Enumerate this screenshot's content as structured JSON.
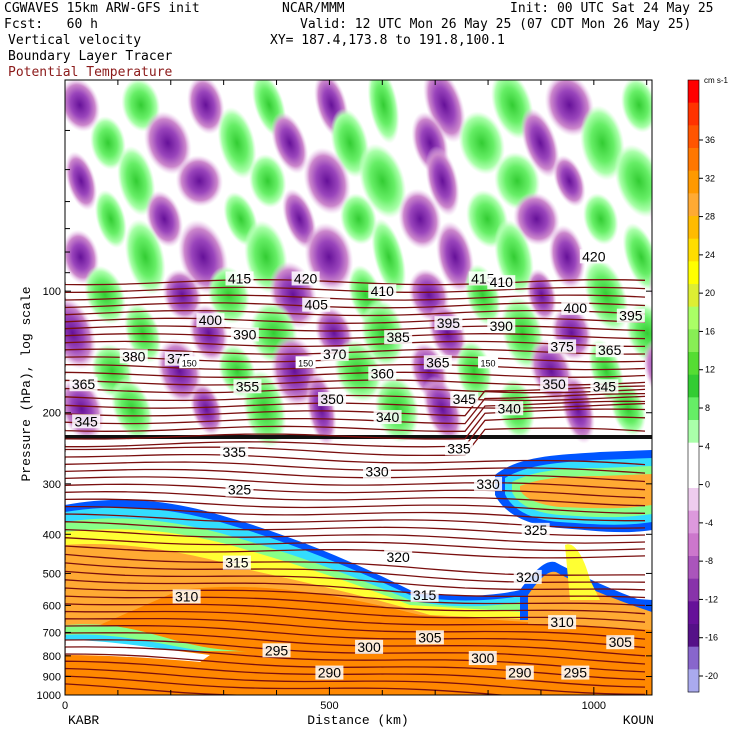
{
  "header": {
    "model": "CGWAVES 15km ARW-GFS init",
    "forecast": "Fcst:   60 h",
    "center": "NCAR/MMM",
    "valid": "Valid: 12 UTC Mon 26 May 25 (07 CDT Mon 26 May 25)",
    "xy": "XY= 187.4,173.8 to 191.8,100.1",
    "init": "Init: 00 UTC Sat 24 May 25",
    "field1": "Vertical velocity",
    "field2": "Boundary Layer Tracer",
    "field3": "Potential Temperature",
    "field3_color": "#8b1a1a"
  },
  "chart_data": {
    "type": "heatmap",
    "xlabel": "Distance (km)",
    "ylabel": "Pressure (hPa), log scale",
    "x_ticks": [
      "0",
      "500",
      "1000"
    ],
    "x_range": [
      0,
      1110
    ],
    "y_ticks": [
      "100",
      "200",
      "300",
      "400",
      "500",
      "600",
      "700",
      "800",
      "900",
      "1000"
    ],
    "y_range_hPa": [
      1000,
      30
    ],
    "endpoints": {
      "left": "KABR",
      "right": "KOUN"
    },
    "colorbar": {
      "unit": "cm s-1",
      "labels": [
        "36",
        "32",
        "28",
        "24",
        "20",
        "16",
        "12",
        "8",
        "4",
        "0",
        "-4",
        "-8",
        "-12",
        "-16",
        "-20"
      ],
      "colors": [
        "#ff0000",
        "#ff3300",
        "#ff5500",
        "#ff7700",
        "#ff9900",
        "#ffaa33",
        "#ffbb00",
        "#ffdd00",
        "#ffff00",
        "#ddee33",
        "#aaff66",
        "#88ee55",
        "#55dd33",
        "#33cc33",
        "#66ee66",
        "#aaffaa",
        "#ffffff",
        "#ffffff",
        "#eeccee",
        "#dd99dd",
        "#cc77cc",
        "#aa55bb",
        "#8833aa",
        "#661199",
        "#551188",
        "#8866cc",
        "#aaaaee"
      ]
    },
    "theta_labels": [
      {
        "v": "420",
        "x": 455,
        "p": 93
      },
      {
        "v": "420",
        "x": 1000,
        "p": 82
      },
      {
        "v": "415",
        "x": 330,
        "p": 93
      },
      {
        "v": "415",
        "x": 790,
        "p": 93
      },
      {
        "v": "410",
        "x": 600,
        "p": 100
      },
      {
        "v": "410",
        "x": 825,
        "p": 95
      },
      {
        "v": "405",
        "x": 475,
        "p": 108
      },
      {
        "v": "400",
        "x": 275,
        "p": 118
      },
      {
        "v": "400",
        "x": 965,
        "p": 110
      },
      {
        "v": "395",
        "x": 725,
        "p": 120
      },
      {
        "v": "395",
        "x": 1070,
        "p": 115
      },
      {
        "v": "390",
        "x": 340,
        "p": 128
      },
      {
        "v": "390",
        "x": 825,
        "p": 122
      },
      {
        "v": "385",
        "x": 630,
        "p": 130
      },
      {
        "v": "380",
        "x": 130,
        "p": 145
      },
      {
        "v": "375",
        "x": 215,
        "p": 147
      },
      {
        "v": "375",
        "x": 940,
        "p": 137
      },
      {
        "v": "370",
        "x": 510,
        "p": 143
      },
      {
        "v": "365",
        "x": 35,
        "p": 170
      },
      {
        "v": "365",
        "x": 705,
        "p": 150
      },
      {
        "v": "365",
        "x": 1030,
        "p": 140
      },
      {
        "v": "360",
        "x": 600,
        "p": 160
      },
      {
        "v": "355",
        "x": 345,
        "p": 172
      },
      {
        "v": "350",
        "x": 505,
        "p": 185
      },
      {
        "v": "350",
        "x": 925,
        "p": 170
      },
      {
        "v": "345",
        "x": 40,
        "p": 210
      },
      {
        "v": "345",
        "x": 755,
        "p": 185
      },
      {
        "v": "345",
        "x": 1020,
        "p": 172
      },
      {
        "v": "340",
        "x": 610,
        "p": 205
      },
      {
        "v": "340",
        "x": 840,
        "p": 195
      },
      {
        "v": "335",
        "x": 320,
        "p": 250
      },
      {
        "v": "335",
        "x": 745,
        "p": 245
      },
      {
        "v": "330",
        "x": 590,
        "p": 280
      },
      {
        "v": "330",
        "x": 800,
        "p": 300
      },
      {
        "v": "325",
        "x": 330,
        "p": 310
      },
      {
        "v": "325",
        "x": 890,
        "p": 390
      },
      {
        "v": "320",
        "x": 630,
        "p": 455
      },
      {
        "v": "320",
        "x": 875,
        "p": 510
      },
      {
        "v": "315",
        "x": 325,
        "p": 470
      },
      {
        "v": "315",
        "x": 680,
        "p": 565
      },
      {
        "v": "310",
        "x": 230,
        "p": 570
      },
      {
        "v": "310",
        "x": 940,
        "p": 660
      },
      {
        "v": "305",
        "x": 690,
        "p": 720
      },
      {
        "v": "305",
        "x": 1050,
        "p": 740
      },
      {
        "v": "300",
        "x": 575,
        "p": 760
      },
      {
        "v": "300",
        "x": 790,
        "p": 810
      },
      {
        "v": "295",
        "x": 400,
        "p": 775
      },
      {
        "v": "295",
        "x": 965,
        "p": 880
      },
      {
        "v": "290",
        "x": 500,
        "p": 880
      },
      {
        "v": "290",
        "x": 860,
        "p": 880
      }
    ],
    "tropopause_label": {
      "v": "150",
      "p": 150,
      "x": [
        235,
        455,
        800
      ]
    }
  }
}
